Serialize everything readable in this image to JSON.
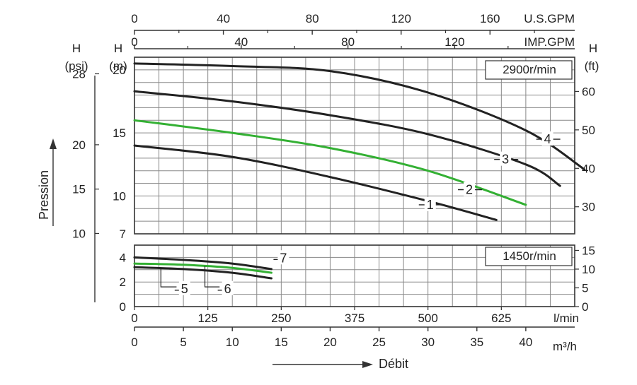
{
  "chart_data": {
    "type": "line",
    "grid": true,
    "scales": {
      "flow_m3h": [
        0,
        45
      ],
      "h_m_top": [
        7,
        21
      ],
      "h_m_bottom": [
        0,
        5
      ]
    },
    "top_axes": [
      {
        "unit": "U.S.GPM",
        "ticks": [
          0,
          40,
          80,
          120,
          160
        ]
      },
      {
        "unit": "IMP.GPM",
        "ticks": [
          0,
          40,
          80,
          120
        ]
      }
    ],
    "bottom_axes": [
      {
        "unit": "l/min",
        "ticks": [
          0,
          125,
          250,
          375,
          500,
          625
        ]
      },
      {
        "unit": "m³/h",
        "ticks": [
          0,
          5,
          10,
          15,
          20,
          25,
          30,
          35,
          40
        ]
      }
    ],
    "left_axes": {
      "m_header": [
        "H",
        "(m)"
      ],
      "psi_header": [
        "H",
        "(psi)"
      ],
      "m_ticks_top": [
        7,
        10,
        15,
        20
      ],
      "m_ticks_bottom": [
        0,
        2,
        4
      ],
      "psi_ticks": [
        10,
        15,
        20,
        28
      ]
    },
    "right_axis": {
      "header": [
        "H",
        "(ft)"
      ],
      "ticks_top": [
        30,
        40,
        50,
        60
      ],
      "ticks_bottom": [
        0,
        5,
        10,
        15
      ]
    },
    "pressure_label": "Pression",
    "flow_label": "Débit",
    "speed_labels": {
      "top": "2900r/min",
      "bottom": "1450r/min"
    },
    "series": [
      {
        "name": "1",
        "color": "#222222",
        "panel": "top",
        "x": [
          0,
          10,
          20,
          30,
          37
        ],
        "y": [
          14.0,
          13.1,
          11.5,
          9.6,
          8.1
        ],
        "label_at": [
          29.5,
          9.3
        ]
      },
      {
        "name": "2",
        "color": "#33b033",
        "panel": "top",
        "x": [
          0,
          10,
          20,
          30,
          40
        ],
        "y": [
          16.0,
          15.0,
          13.8,
          12.0,
          9.3
        ],
        "label_at": [
          33.5,
          10.5
        ]
      },
      {
        "name": "3",
        "color": "#222222",
        "panel": "top",
        "x": [
          0,
          10,
          20,
          30,
          40,
          43.5
        ],
        "y": [
          18.3,
          17.5,
          16.4,
          14.9,
          12.5,
          10.8
        ],
        "label_at": [
          37.2,
          12.9
        ]
      },
      {
        "name": "4",
        "color": "#222222",
        "panel": "top",
        "x": [
          0,
          10,
          20,
          30,
          40,
          46
        ],
        "y": [
          20.5,
          20.3,
          19.9,
          18.2,
          15.2,
          12.1
        ],
        "label_at": [
          41.5,
          14.5
        ]
      },
      {
        "name": "5",
        "color": "#222222",
        "panel": "bottom",
        "x": [
          0,
          5,
          10,
          14
        ],
        "y": [
          3.2,
          3.05,
          2.75,
          2.3
        ],
        "label_at": [
          4.4,
          1.45
        ]
      },
      {
        "name": "6",
        "color": "#33b033",
        "panel": "bottom",
        "x": [
          0,
          5,
          10,
          14
        ],
        "y": [
          3.5,
          3.4,
          3.15,
          2.75
        ],
        "label_at": [
          8.8,
          1.45
        ]
      },
      {
        "name": "7",
        "color": "#222222",
        "panel": "bottom",
        "x": [
          0,
          5,
          10,
          14
        ],
        "y": [
          4.0,
          3.8,
          3.5,
          3.05
        ],
        "label_at": [
          14.5,
          3.95
        ]
      }
    ]
  }
}
